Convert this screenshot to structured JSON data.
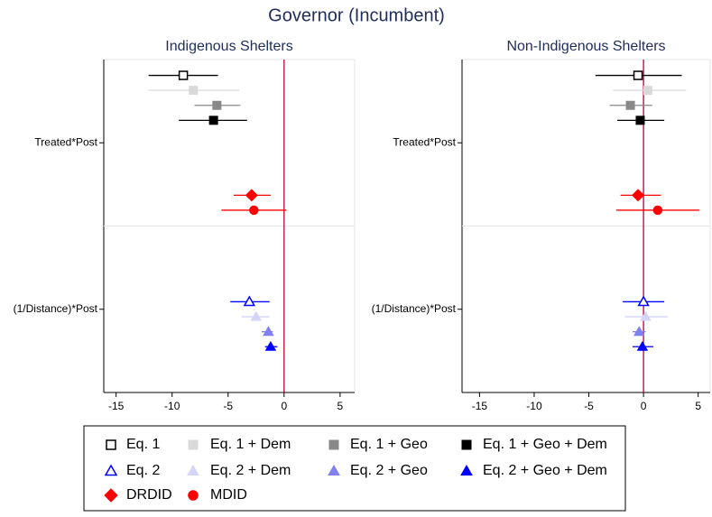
{
  "chart_data": {
    "type": "coefplot",
    "title": "Governor (Incumbent)",
    "panels": [
      "Indigenous Shelters",
      "Non-Indigenous Shelters"
    ],
    "categories": [
      "Treated*Post",
      "(1/Distance)*Post"
    ],
    "xlim": [
      [
        -16.1,
        6.3
      ],
      [
        -16.6,
        6.1
      ]
    ],
    "xticks": [
      -15,
      -10,
      -5,
      0,
      5
    ],
    "zero_line_color": "#b5003a",
    "series": [
      {
        "name": "Eq. 1",
        "color": "#000000",
        "marker": "square",
        "filled": false,
        "values": [
          [
            -9.0,
            null
          ],
          [
            -0.5,
            null
          ]
        ],
        "lower": [
          [
            -12.1,
            null
          ],
          [
            -4.4,
            null
          ]
        ],
        "upper": [
          [
            -5.9,
            null
          ],
          [
            3.5,
            null
          ]
        ]
      },
      {
        "name": "Eq. 1 + Dem",
        "color": "#d9d9d9",
        "marker": "square",
        "filled": true,
        "values": [
          [
            -8.1,
            null
          ],
          [
            0.4,
            null
          ]
        ],
        "lower": [
          [
            -12.1,
            null
          ],
          [
            -2.8,
            null
          ]
        ],
        "upper": [
          [
            -4.0,
            null
          ],
          [
            3.9,
            null
          ]
        ]
      },
      {
        "name": "Eq. 1 + Geo",
        "color": "#888888",
        "marker": "square",
        "filled": true,
        "values": [
          [
            -6.0,
            null
          ],
          [
            -1.2,
            null
          ]
        ],
        "lower": [
          [
            -8.0,
            null
          ],
          [
            -3.1,
            null
          ]
        ],
        "upper": [
          [
            -3.9,
            null
          ],
          [
            0.8,
            null
          ]
        ]
      },
      {
        "name": "Eq. 1 + Geo + Dem",
        "color": "#000000",
        "marker": "square",
        "filled": true,
        "values": [
          [
            -6.3,
            null
          ],
          [
            -0.3,
            null
          ]
        ],
        "lower": [
          [
            -9.4,
            null
          ],
          [
            -2.4,
            null
          ]
        ],
        "upper": [
          [
            -3.3,
            null
          ],
          [
            1.9,
            null
          ]
        ]
      },
      {
        "name": "Eq. 2",
        "color": "#0000ff",
        "marker": "triangle",
        "filled": false,
        "values": [
          [
            null,
            -3.1
          ],
          [
            null,
            0.0
          ]
        ],
        "lower": [
          [
            null,
            -4.8
          ],
          [
            null,
            -1.9
          ]
        ],
        "upper": [
          [
            null,
            -1.3
          ],
          [
            null,
            1.9
          ]
        ]
      },
      {
        "name": "Eq. 2 + Dem",
        "color": "#d4d4f7",
        "marker": "triangle",
        "filled": true,
        "values": [
          [
            null,
            -2.5
          ],
          [
            null,
            0.2
          ]
        ],
        "lower": [
          [
            null,
            -3.8
          ],
          [
            null,
            -1.7
          ]
        ],
        "upper": [
          [
            null,
            -1.3
          ],
          [
            null,
            2.2
          ]
        ]
      },
      {
        "name": "Eq. 2 + Geo",
        "color": "#8080f0",
        "marker": "triangle",
        "filled": true,
        "values": [
          [
            null,
            -1.4
          ],
          [
            null,
            -0.4
          ]
        ],
        "lower": [
          [
            null,
            -2.0
          ],
          [
            null,
            -1.0
          ]
        ],
        "upper": [
          [
            null,
            -1.0
          ],
          [
            null,
            0.2
          ]
        ]
      },
      {
        "name": "Eq. 2 + Geo + Dem",
        "color": "#0000ff",
        "marker": "triangle",
        "filled": true,
        "values": [
          [
            null,
            -1.2
          ],
          [
            null,
            -0.1
          ]
        ],
        "lower": [
          [
            null,
            -1.7
          ],
          [
            null,
            -1.0
          ]
        ],
        "upper": [
          [
            null,
            -0.6
          ],
          [
            null,
            0.9
          ]
        ]
      },
      {
        "name": "DRDID",
        "color": "#ff0000",
        "marker": "diamond",
        "filled": true,
        "values": [
          [
            -2.9,
            null
          ],
          [
            -0.5,
            null
          ]
        ],
        "lower": [
          [
            -4.5,
            null
          ],
          [
            -2.1,
            null
          ]
        ],
        "upper": [
          [
            -1.2,
            null
          ],
          [
            1.6,
            null
          ]
        ]
      },
      {
        "name": "MDID",
        "color": "#ff0000",
        "marker": "circle",
        "filled": true,
        "values": [
          [
            -2.7,
            null
          ],
          [
            1.3,
            null
          ]
        ],
        "lower": [
          [
            -5.6,
            null
          ],
          [
            -2.5,
            null
          ]
        ],
        "upper": [
          [
            0.2,
            null
          ],
          [
            5.1,
            null
          ]
        ]
      }
    ]
  }
}
